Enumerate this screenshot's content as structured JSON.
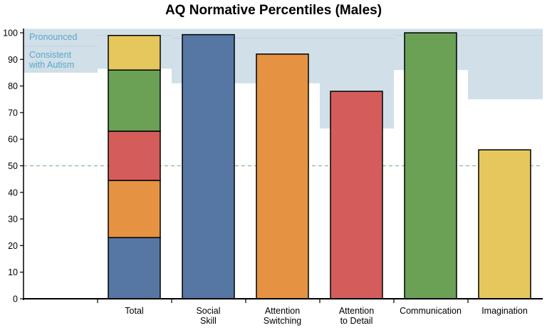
{
  "chart_data": {
    "type": "bar",
    "title": "AQ Normative Percentiles (Males)",
    "xlabel": "",
    "ylabel": "",
    "ylim": [
      0,
      100
    ],
    "yticks": [
      0,
      10,
      20,
      30,
      40,
      50,
      60,
      70,
      80,
      90,
      100
    ],
    "categories": [
      [
        "Total"
      ],
      [
        "Social",
        "Skill"
      ],
      [
        "Attention",
        "Switching"
      ],
      [
        "Attention",
        "to Detail"
      ],
      [
        "Communication"
      ],
      [
        "Imagination"
      ]
    ],
    "component_colors": {
      "Social Skill": "#5677a4",
      "Attention Switching": "#e59342",
      "Attention to Detail": "#d45d5b",
      "Communication": "#6aa155",
      "Imagination": "#e6c75d"
    },
    "total_stack": [
      {
        "component": "Social Skill",
        "value": 23
      },
      {
        "component": "Attention Switching",
        "value": 21.5
      },
      {
        "component": "Attention to Detail",
        "value": 18.5
      },
      {
        "component": "Communication",
        "value": 23
      },
      {
        "component": "Imagination",
        "value": 13
      }
    ],
    "subscales": [
      {
        "category": "Social Skill",
        "value": 99.3
      },
      {
        "category": "Attention Switching",
        "value": 92
      },
      {
        "category": "Attention to Detail",
        "value": 78
      },
      {
        "category": "Communication",
        "value": 100
      },
      {
        "category": "Imagination",
        "value": 56
      }
    ],
    "reference_line": {
      "value": 50,
      "style": "dashed",
      "color": "#7dc47d"
    },
    "bands": {
      "color": "#d0dfe8",
      "label_color": "#5aa7c9",
      "labels": {
        "pronounced": "Pronounced",
        "consistent": [
          "Consistent",
          "with Autism"
        ]
      },
      "consistent_lower": [
        85,
        86.5,
        81,
        81,
        64,
        86,
        75
      ],
      "pronounced_lower": [
        95,
        99,
        98,
        98,
        98,
        99,
        99
      ]
    },
    "grid": false,
    "legend": "none"
  }
}
